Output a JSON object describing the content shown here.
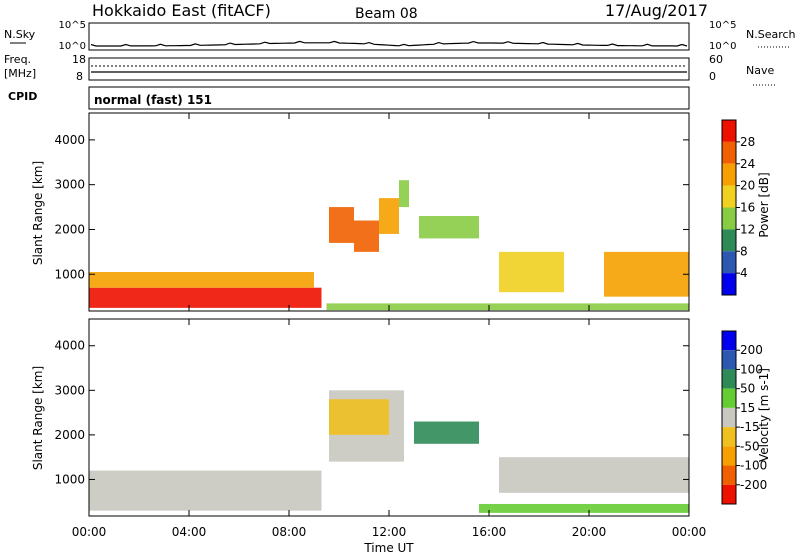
{
  "header": {
    "station": "Hokkaido East (fitACF)",
    "beam": "Beam 08",
    "date": "17/Aug/2017"
  },
  "noise_panel": {
    "left_label": "N.Sky",
    "right_label": "N.Search",
    "left_ticks": [
      "10^5",
      "10^0"
    ],
    "right_ticks": [
      "10^5",
      "10^0"
    ]
  },
  "freq_panel": {
    "left_label_line1": "Freq.",
    "left_label_line2": "[MHz]",
    "right_label": "Nave",
    "left_ticks": [
      "18",
      "8"
    ],
    "right_ticks": [
      "60",
      "0"
    ]
  },
  "cpid_panel": {
    "label": "CPID",
    "value": "normal (fast) 151"
  },
  "colors": {
    "power": [
      "#0000ee",
      "#2c58b0",
      "#2e8b57",
      "#88cc44",
      "#f0d020",
      "#f5a000",
      "#f06000",
      "#ee1100"
    ],
    "velocity": [
      "#ee1100",
      "#f06000",
      "#f5a000",
      "#f0c020",
      "#c8c8c0",
      "#66cc33",
      "#2e8b57",
      "#2c58b0",
      "#0000ee"
    ]
  },
  "chart_data": [
    {
      "type": "heatmap",
      "quantity": "Power",
      "ylabel": "Slant Range [km]",
      "ylim": [
        180,
        4600
      ],
      "yticks": [
        "1000",
        "2000",
        "3000",
        "4000"
      ],
      "xlim": [
        "00:00",
        "24:00"
      ],
      "colorbar_label": "Power [dB]",
      "colorbar_ticks": [
        "4",
        "8",
        "12",
        "16",
        "20",
        "24",
        "28"
      ],
      "regions": [
        {
          "t0": 0.0,
          "t1": 9.3,
          "r0": 250,
          "r1": 700,
          "value": 29
        },
        {
          "t0": 0.0,
          "t1": 9.0,
          "r0": 700,
          "r1": 1050,
          "value": 22
        },
        {
          "t0": 9.6,
          "t1": 10.6,
          "r0": 1700,
          "r1": 2500,
          "value": 26
        },
        {
          "t0": 10.6,
          "t1": 11.6,
          "r0": 1500,
          "r1": 2200,
          "value": 24
        },
        {
          "t0": 11.6,
          "t1": 12.4,
          "r0": 1900,
          "r1": 2700,
          "value": 20
        },
        {
          "t0": 12.4,
          "t1": 12.8,
          "r0": 2500,
          "r1": 3100,
          "value": 14
        },
        {
          "t0": 13.2,
          "t1": 15.6,
          "r0": 1800,
          "r1": 2300,
          "value": 13
        },
        {
          "t0": 16.4,
          "t1": 19.0,
          "r0": 600,
          "r1": 1500,
          "value": 18
        },
        {
          "t0": 20.6,
          "t1": 24.0,
          "r0": 500,
          "r1": 1500,
          "value": 22
        },
        {
          "t0": 9.5,
          "t1": 24.0,
          "r0": 200,
          "r1": 350,
          "value": 12
        }
      ]
    },
    {
      "type": "heatmap",
      "quantity": "Velocity",
      "ylabel": "Slant Range [km]",
      "ylim": [
        180,
        4600
      ],
      "yticks": [
        "1000",
        "2000",
        "3000",
        "4000"
      ],
      "xlabel": "Time UT",
      "xticks": [
        "00:00",
        "04:00",
        "08:00",
        "12:00",
        "16:00",
        "20:00",
        "00:00"
      ],
      "colorbar_label": "Velocity [m s-1]",
      "colorbar_ticks": [
        "200",
        "100",
        "50",
        "15",
        "-15",
        "-50",
        "-100",
        "-200"
      ],
      "regions": [
        {
          "t0": 0.0,
          "t1": 9.3,
          "r0": 300,
          "r1": 1200,
          "value": 0
        },
        {
          "t0": 9.6,
          "t1": 12.6,
          "r0": 1400,
          "r1": 3000,
          "value": 5
        },
        {
          "t0": 13.0,
          "t1": 15.6,
          "r0": 1800,
          "r1": 2300,
          "value": 80
        },
        {
          "t0": 15.6,
          "t1": 24.0,
          "r0": 250,
          "r1": 450,
          "value": 30
        },
        {
          "t0": 16.4,
          "t1": 24.0,
          "r0": 700,
          "r1": 1500,
          "value": 0
        },
        {
          "t0": 9.6,
          "t1": 12.0,
          "r0": 2000,
          "r1": 2800,
          "value": -40
        }
      ]
    }
  ]
}
